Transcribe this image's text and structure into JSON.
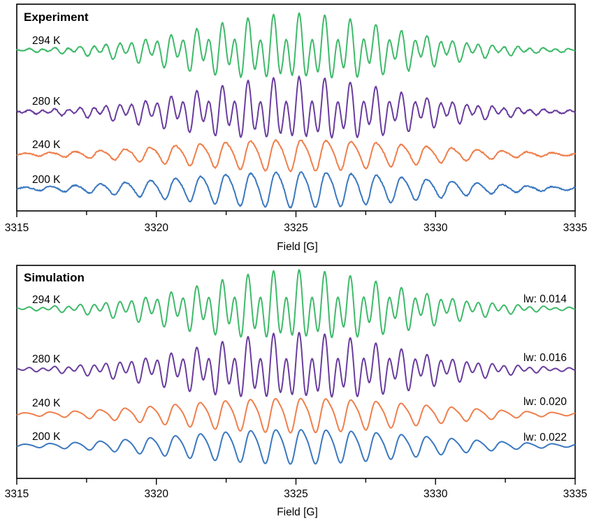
{
  "colors": {
    "294 K": "#3fba6a",
    "280 K": "#6a3d9e",
    "240 K": "#ef7f4c",
    "200 K": "#3b78c0"
  },
  "chart_data": [
    {
      "type": "line",
      "title": "Experiment",
      "xlabel": "Field [G]",
      "ylabel": "",
      "xlim": [
        3315,
        3335
      ],
      "xticks": [
        3315,
        3320,
        3325,
        3330,
        3335
      ],
      "grid": false,
      "series": [
        {
          "name": "294 K",
          "lw": "",
          "center": 3325,
          "spacing": 0.46,
          "width": 0.07,
          "envelope": 3.9,
          "amplitude": 1.0
        },
        {
          "name": "280 K",
          "lw": "",
          "center": 3325,
          "spacing": 0.46,
          "width": 0.09,
          "envelope": 4.0,
          "amplitude": 0.95
        },
        {
          "name": "240 K",
          "lw": "",
          "center": 3325,
          "spacing": 0.9,
          "width": 0.22,
          "envelope": 4.4,
          "amplitude": 0.62
        },
        {
          "name": "200 K",
          "lw": "",
          "center": 3325,
          "spacing": 0.9,
          "width": 0.28,
          "envelope": 4.4,
          "amplitude": 0.72
        }
      ]
    },
    {
      "type": "line",
      "title": "Simulation",
      "xlabel": "Field [G]",
      "ylabel": "",
      "xlim": [
        3315,
        3335
      ],
      "xticks": [
        3315,
        3320,
        3325,
        3330,
        3335
      ],
      "grid": false,
      "series": [
        {
          "name": "294 K",
          "lw": "lw: 0.014",
          "center": 3325,
          "spacing": 0.46,
          "width": 0.07,
          "envelope": 3.9,
          "amplitude": 1.0
        },
        {
          "name": "280 K",
          "lw": "lw: 0.016",
          "center": 3325,
          "spacing": 0.46,
          "width": 0.09,
          "envelope": 4.0,
          "amplitude": 0.95
        },
        {
          "name": "240 K",
          "lw": "lw: 0.020",
          "center": 3325,
          "spacing": 0.9,
          "width": 0.2,
          "envelope": 4.4,
          "amplitude": 0.65
        },
        {
          "name": "200 K",
          "lw": "lw: 0.022",
          "center": 3325,
          "spacing": 0.9,
          "width": 0.26,
          "envelope": 4.4,
          "amplitude": 0.66
        }
      ]
    }
  ]
}
